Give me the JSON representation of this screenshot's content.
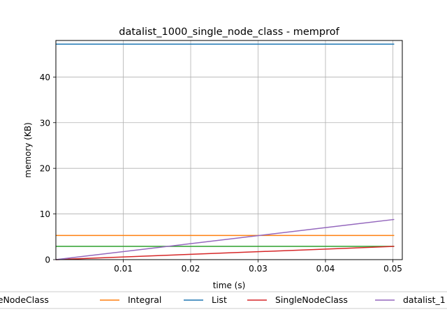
{
  "chart_data": {
    "type": "line",
    "title": "datalist_1000_single_node_class - memprof",
    "xlabel": "time (s)",
    "ylabel": "memory (KB)",
    "xlim": [
      0.0,
      0.0514
    ],
    "ylim": [
      0,
      48
    ],
    "x_ticks": [
      0.01,
      0.02,
      0.03,
      0.04,
      0.05
    ],
    "x_tick_labels": [
      "0.01",
      "0.02",
      "0.03",
      "0.04",
      "0.05"
    ],
    "y_ticks": [
      0,
      10,
      20,
      30,
      40
    ],
    "y_tick_labels": [
      "0",
      "10",
      "20",
      "30",
      "40"
    ],
    "grid": true,
    "legend_placement": "below-plot",
    "series": [
      {
        "name": "BaseNodeClass",
        "color": "#2ca02c",
        "x": [
          0.0,
          0.0502
        ],
        "y": [
          2.9,
          2.9
        ]
      },
      {
        "name": "Integral",
        "color": "#ff7f0e",
        "x": [
          0.0,
          0.0502
        ],
        "y": [
          5.3,
          5.3
        ]
      },
      {
        "name": "List",
        "color": "#1f77b4",
        "x": [
          0.0,
          0.0502
        ],
        "y": [
          47.2,
          47.2
        ]
      },
      {
        "name": "SingleNodeClass",
        "color": "#d62728",
        "x": [
          0.0,
          0.0502
        ],
        "y": [
          0.0,
          2.9
        ]
      },
      {
        "name": "datalist_1",
        "color": "#9467bd",
        "x": [
          0.0,
          0.0502
        ],
        "y": [
          0.0,
          8.8
        ]
      }
    ]
  }
}
